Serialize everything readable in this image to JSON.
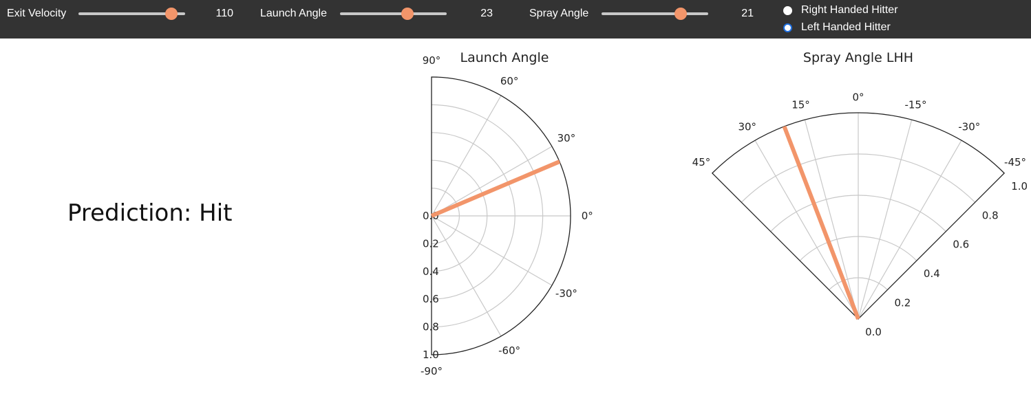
{
  "controls": {
    "exit_velocity": {
      "label": "Exit Velocity",
      "value": 110,
      "fraction": 0.87
    },
    "launch_angle": {
      "label": "Launch Angle",
      "value": 23,
      "fraction": 0.63
    },
    "spray_angle": {
      "label": "Spray Angle",
      "value": 21,
      "fraction": 0.74
    },
    "hitter": {
      "options": [
        "Right Handed Hitter",
        "Left Handed Hitter"
      ],
      "selected": "Left Handed Hitter"
    }
  },
  "prediction": {
    "text": "Prediction: Hit"
  },
  "colors": {
    "toolbar": "#333333",
    "accent": "#f2956a",
    "grid": "#c8c8c8",
    "radio_checked": "#1f6fe0"
  },
  "chart_data": [
    {
      "type": "polar",
      "title": "Launch Angle",
      "theta_range": [
        -90,
        90
      ],
      "theta_ticks": [
        "90°",
        "60°",
        "30°",
        "0°",
        "-30°",
        "-60°",
        "-90°"
      ],
      "r_range": [
        0,
        1.0
      ],
      "r_ticks": [
        "0.0",
        "0.2",
        "0.4",
        "0.6",
        "0.8",
        "1.0"
      ],
      "grid": true,
      "series": [
        {
          "theta_deg": 23,
          "r": 1.0
        }
      ]
    },
    {
      "type": "polar",
      "title": "Spray Angle LHH",
      "theta_range": [
        -45,
        45
      ],
      "theta_ticks": [
        "45°",
        "30°",
        "15°",
        "0°",
        "-15°",
        "-30°",
        "-45°"
      ],
      "r_range": [
        0,
        1.0
      ],
      "r_ticks": [
        "0.0",
        "0.2",
        "0.4",
        "0.6",
        "0.8",
        "1.0"
      ],
      "grid": true,
      "series": [
        {
          "theta_deg": 21,
          "r": 1.0
        }
      ]
    }
  ]
}
